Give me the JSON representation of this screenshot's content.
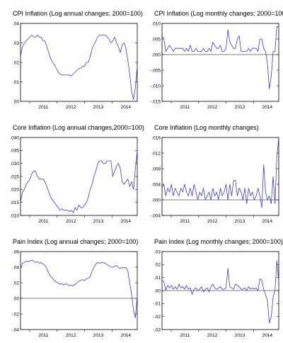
{
  "chart_data": [
    {
      "type": "line",
      "title": "CPI Inflation (Log annual changes; 2000=100)",
      "x_ticks": [
        "2011",
        "2012",
        "2013",
        "2014"
      ],
      "x_range": [
        "2010-09",
        "2014-12"
      ],
      "y_ticks": [
        ".00",
        ".01",
        ".02",
        ".03",
        ".04"
      ],
      "ylim": [
        0,
        0.04
      ],
      "zero_line": false,
      "series": [
        {
          "values": [
            0.023,
            0.028,
            0.03,
            0.031,
            0.032,
            0.033,
            0.034,
            0.033,
            0.033,
            0.034,
            0.033,
            0.033,
            0.031,
            0.031,
            0.028,
            0.025,
            0.022,
            0.02,
            0.019,
            0.017,
            0.015,
            0.014,
            0.0135,
            0.0135,
            0.0135,
            0.0135,
            0.0135,
            0.013,
            0.014,
            0.015,
            0.016,
            0.017,
            0.017,
            0.018,
            0.018,
            0.02,
            0.02,
            0.023,
            0.027,
            0.029,
            0.031,
            0.033,
            0.034,
            0.034,
            0.034,
            0.034,
            0.033,
            0.032,
            0.03,
            0.031,
            0.033,
            0.03,
            0.028,
            0.025,
            0.029,
            0.03,
            0.027,
            0.021,
            0.014,
            0.005,
            0.001,
            0.007,
            0.018
          ]
        }
      ]
    },
    {
      "type": "line",
      "title": "CPI Inflation (Log monthly changes; 2000=100)",
      "x_ticks": [
        "2011",
        "2012",
        "2013",
        "2014"
      ],
      "x_range": [
        "2010-09",
        "2014-12"
      ],
      "y_ticks": [
        ".010",
        ".005",
        ".000",
        "-.005",
        "-.010",
        "-.015"
      ],
      "ylim": [
        -0.015,
        0.01
      ],
      "zero_line": true,
      "series": [
        {
          "values": [
            0.006,
            0.005,
            0.001,
            0.002,
            0.003,
            0.002,
            0.001,
            0.002,
            0.002,
            0.002,
            0.002,
            0.002,
            0.001,
            0.002,
            0.001,
            0.003,
            0.001,
            0.001,
            0.002,
            0.001,
            0.001,
            0.001,
            0.002,
            0.001,
            0.001,
            0.002,
            0.001,
            0.004,
            0.003,
            0.002,
            0.002,
            0.003,
            0.001,
            0.001,
            0.002,
            0.008,
            0.004,
            0.003,
            0.002,
            0.002,
            0.005,
            0.006,
            0.001,
            0.001,
            0.001,
            0.001,
            0.002,
            0.001,
            0.002,
            0.002,
            0.002,
            0.001,
            0.005,
            0.005,
            0.002,
            0.001,
            -0.003,
            -0.011,
            -0.007,
            0.001,
            0.001,
            0.009,
            0.009
          ]
        }
      ]
    },
    {
      "type": "line",
      "title": "Core Inflation (Log annual changes,2000=100)",
      "x_ticks": [
        "2011",
        "2012",
        "2013",
        "2014"
      ],
      "x_range": [
        "2010-09",
        "2014-12"
      ],
      "y_ticks": [
        ".010",
        ".015",
        ".020",
        ".025",
        ".030",
        ".035",
        ".040"
      ],
      "ylim": [
        0.01,
        0.04
      ],
      "zero_line": false,
      "series": [
        {
          "values": [
            0.015,
            0.019,
            0.02,
            0.022,
            0.023,
            0.024,
            0.026,
            0.027,
            0.027,
            0.025,
            0.024,
            0.024,
            0.024,
            0.023,
            0.021,
            0.019,
            0.017,
            0.016,
            0.015,
            0.014,
            0.013,
            0.012,
            0.0125,
            0.012,
            0.012,
            0.012,
            0.0115,
            0.012,
            0.011,
            0.013,
            0.012,
            0.014,
            0.013,
            0.013,
            0.014,
            0.015,
            0.017,
            0.02,
            0.022,
            0.025,
            0.027,
            0.03,
            0.031,
            0.031,
            0.03,
            0.03,
            0.031,
            0.031,
            0.031,
            0.025,
            0.027,
            0.029,
            0.03,
            0.028,
            0.023,
            0.022,
            0.023,
            0.024,
            0.021,
            0.023,
            0.02,
            0.028,
            0.035
          ]
        }
      ]
    },
    {
      "type": "line",
      "title": "Core Inflation (Log monthly changes)",
      "x_ticks": [
        "2011",
        "2012",
        "2013",
        "2014"
      ],
      "x_range": [
        "2010-09",
        "2014-12"
      ],
      "y_ticks": [
        ".016",
        ".012",
        ".008",
        ".004",
        ".000",
        "-.004"
      ],
      "ylim": [
        -0.004,
        0.016
      ],
      "zero_line": true,
      "series": [
        {
          "values": [
            0.003,
            0.004,
            0.001,
            0.003,
            0.002,
            0.004,
            0.001,
            0.003,
            0.002,
            0.001,
            0.003,
            0.002,
            0.004,
            0.002,
            0.001,
            0.003,
            0.001,
            0.004,
            0.002,
            0.0,
            0.002,
            0.001,
            0.003,
            0.0,
            0.001,
            0.002,
            0.0,
            0.003,
            0.001,
            0.002,
            0.0,
            0.003,
            0.001,
            0.002,
            0.004,
            0.0,
            0.004,
            0.001,
            0.005,
            0.005,
            0.001,
            0.003,
            0.002,
            0.0,
            0.003,
            -0.001,
            0.003,
            0.001,
            0.002,
            0.0,
            0.001,
            0.003,
            0.001,
            -0.002,
            0.009,
            0.002,
            0.0,
            0.001,
            -0.001,
            0.006,
            -0.001,
            0.011,
            0.016
          ]
        }
      ]
    },
    {
      "type": "line",
      "title": "Pain Index (Log annual changes; 2000=100)",
      "x_ticks": [
        "2011",
        "2012",
        "2013",
        "2014"
      ],
      "x_range": [
        "2010-09",
        "2014-12"
      ],
      "y_ticks": [
        ".06",
        ".04",
        ".02",
        ".00",
        "-.02",
        "-.04"
      ],
      "ylim": [
        -0.04,
        0.06
      ],
      "zero_line": true,
      "series": [
        {
          "values": [
            0.038,
            0.045,
            0.046,
            0.048,
            0.047,
            0.048,
            0.049,
            0.048,
            0.046,
            0.047,
            0.045,
            0.046,
            0.044,
            0.042,
            0.038,
            0.032,
            0.028,
            0.026,
            0.023,
            0.021,
            0.02,
            0.018,
            0.019,
            0.017,
            0.019,
            0.018,
            0.016,
            0.017,
            0.016,
            0.018,
            0.02,
            0.022,
            0.023,
            0.024,
            0.023,
            0.025,
            0.026,
            0.028,
            0.035,
            0.04,
            0.044,
            0.046,
            0.045,
            0.046,
            0.046,
            0.045,
            0.043,
            0.042,
            0.04,
            0.04,
            0.041,
            0.042,
            0.04,
            0.038,
            0.04,
            0.039,
            0.04,
            0.035,
            0.02,
            0.005,
            -0.015,
            -0.025,
            0.003
          ]
        }
      ]
    },
    {
      "type": "line",
      "title": "Pain Index (Log monthly changes; 2000=100)",
      "x_ticks": [
        "2011",
        "2012",
        "2013",
        "2014"
      ],
      "x_range": [
        "2010-09",
        "2014-12"
      ],
      "y_ticks": [
        ".03",
        ".02",
        ".01",
        ".00",
        "-.01",
        "-.02",
        "-.03"
      ],
      "ylim": [
        -0.03,
        0.03
      ],
      "zero_line": true,
      "series": [
        {
          "values": [
            0.008,
            0.007,
            0.0,
            0.004,
            0.002,
            0.004,
            0.001,
            0.003,
            0.001,
            0.005,
            0.002,
            0.003,
            0.001,
            0.004,
            0.001,
            0.002,
            -0.003,
            0.001,
            0.002,
            0.0,
            0.001,
            0.003,
            -0.001,
            0.001,
            0.002,
            -0.001,
            0.003,
            0.005,
            0.002,
            0.001,
            0.002,
            0.003,
            0.001,
            0.001,
            0.002,
            0.017,
            0.003,
            0.002,
            0.001,
            0.005,
            0.004,
            0.003,
            0.001,
            0.001,
            0.002,
            0.0,
            0.003,
            0.001,
            0.002,
            0.001,
            0.002,
            0.0,
            0.009,
            0.008,
            0.001,
            -0.003,
            -0.008,
            -0.025,
            -0.02,
            -0.005,
            0.0,
            0.023,
            0.007
          ]
        }
      ]
    }
  ]
}
